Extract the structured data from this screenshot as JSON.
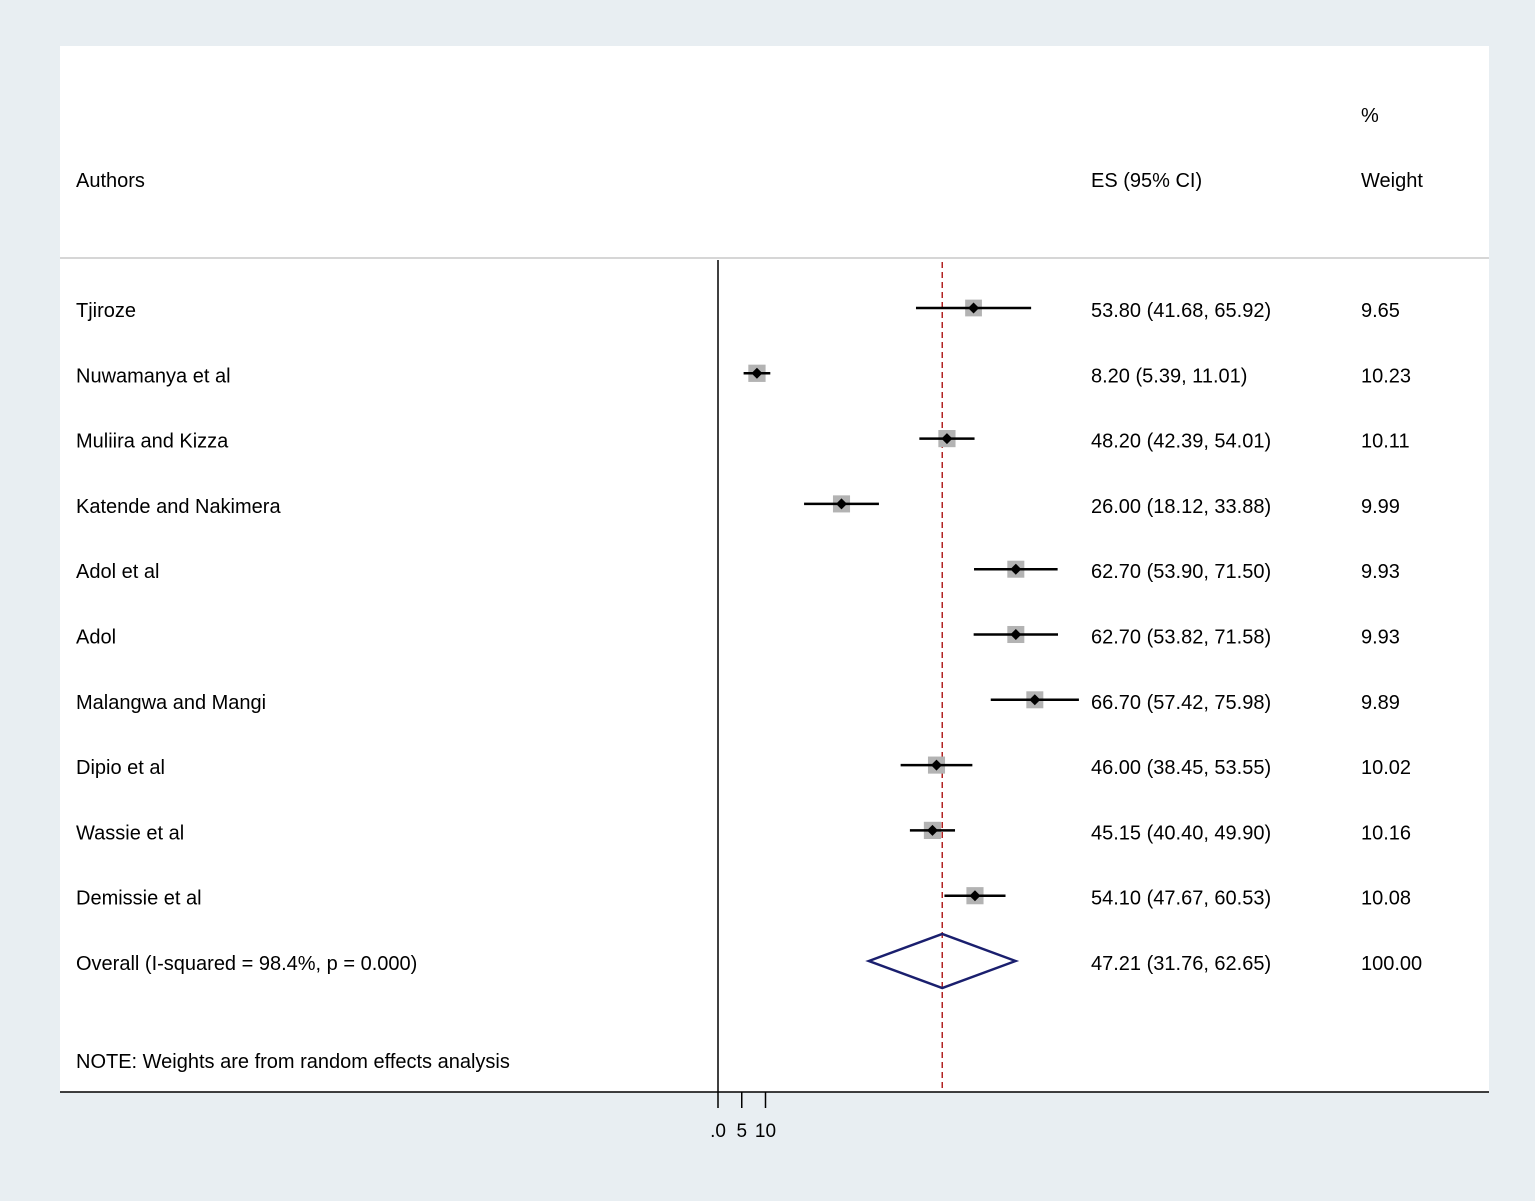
{
  "chart_data": {
    "type": "forest",
    "headers": {
      "authors": "Authors",
      "es": "ES (95% CI)",
      "weight_top": "%",
      "weight_bottom": "Weight"
    },
    "studies": [
      {
        "name": "Tjiroze",
        "es": 53.8,
        "lo": 41.68,
        "hi": 65.92,
        "weight": 9.65,
        "es_label": "53.80 (41.68, 65.92)",
        "weight_label": "9.65"
      },
      {
        "name": "Nuwamanya et al",
        "es": 8.2,
        "lo": 5.39,
        "hi": 11.01,
        "weight": 10.23,
        "es_label": "8.20 (5.39, 11.01)",
        "weight_label": "10.23"
      },
      {
        "name": "Muliira and Kizza",
        "es": 48.2,
        "lo": 42.39,
        "hi": 54.01,
        "weight": 10.11,
        "es_label": "48.20 (42.39, 54.01)",
        "weight_label": "10.11"
      },
      {
        "name": "Katende and Nakimera",
        "es": 26.0,
        "lo": 18.12,
        "hi": 33.88,
        "weight": 9.99,
        "es_label": "26.00 (18.12, 33.88)",
        "weight_label": "9.99"
      },
      {
        "name": "Adol et al",
        "es": 62.7,
        "lo": 53.9,
        "hi": 71.5,
        "weight": 9.93,
        "es_label": "62.70 (53.90, 71.50)",
        "weight_label": "9.93"
      },
      {
        "name": "Adol",
        "es": 62.7,
        "lo": 53.82,
        "hi": 71.58,
        "weight": 9.93,
        "es_label": "62.70 (53.82, 71.58)",
        "weight_label": "9.93"
      },
      {
        "name": "Malangwa and Mangi",
        "es": 66.7,
        "lo": 57.42,
        "hi": 75.98,
        "weight": 9.89,
        "es_label": "66.70 (57.42, 75.98)",
        "weight_label": "9.89"
      },
      {
        "name": "Dipio et al",
        "es": 46.0,
        "lo": 38.45,
        "hi": 53.55,
        "weight": 10.02,
        "es_label": "46.00 (38.45, 53.55)",
        "weight_label": "10.02"
      },
      {
        "name": "Wassie et al",
        "es": 45.15,
        "lo": 40.4,
        "hi": 49.9,
        "weight": 10.16,
        "es_label": "45.15 (40.40, 49.90)",
        "weight_label": "10.16"
      },
      {
        "name": "Demissie et al",
        "es": 54.1,
        "lo": 47.67,
        "hi": 60.53,
        "weight": 10.08,
        "es_label": "54.10 (47.67, 60.53)",
        "weight_label": "10.08"
      }
    ],
    "overall": {
      "label": "Overall  (I-squared = 98.4%, p = 0.000)",
      "es": 47.21,
      "lo": 31.76,
      "hi": 62.65,
      "weight": 100.0,
      "es_label": "47.21 (31.76, 62.65)",
      "weight_label": "100.00"
    },
    "note": "NOTE: Weights are from random effects analysis",
    "x_ticks": [
      0,
      5,
      10
    ],
    "x_tick_labels": [
      ".0",
      "5",
      "10"
    ],
    "xlim": [
      0,
      76
    ],
    "null_line": 0,
    "colors": {
      "background": "#e8eef2",
      "plot": "#ffffff",
      "ci_line": "#000000",
      "weight_box": "#b3b3b3",
      "overall_line": "#b22222",
      "diamond": "#1a1f6e"
    }
  }
}
